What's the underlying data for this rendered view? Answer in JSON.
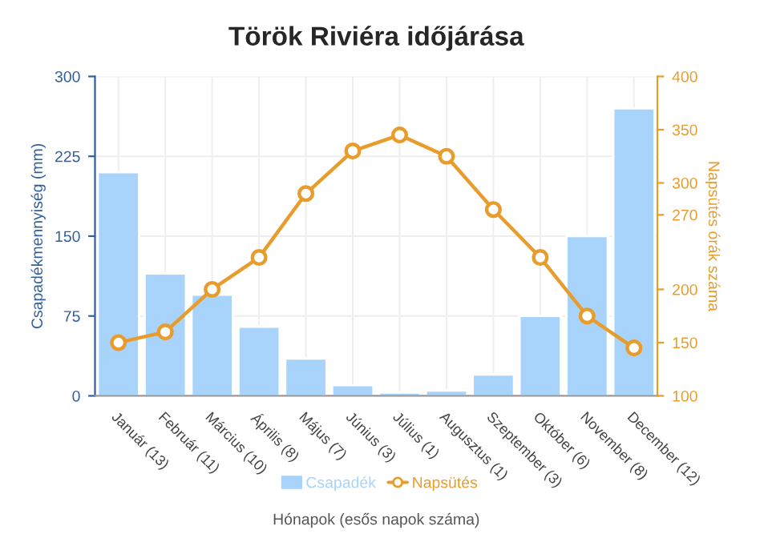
{
  "chart_data": {
    "type": "bar",
    "title": "Török Riviéra időjárása",
    "xlabel": "Hónapok (esős napok száma)",
    "ylabel": "Csapadékmennyiség (mm)",
    "y2label": "Napsütés órák száma",
    "categories": [
      "Január (13)",
      "Február (11)",
      "Március (10)",
      "Április (8)",
      "Május (7)",
      "Június (3)",
      "Július (1)",
      "Augusztus (1)",
      "Szeptember (3)",
      "Október (6)",
      "November (8)",
      "December (12)"
    ],
    "series": [
      {
        "name": "Csapadék",
        "color": "#a8d3fa",
        "values": [
          210,
          115,
          95,
          65,
          35,
          10,
          3,
          5,
          20,
          75,
          150,
          270
        ]
      },
      {
        "name": "Napsütés",
        "type": "line",
        "axis": "y2",
        "color": "#e89c2c",
        "marker": "circle",
        "values": [
          150,
          160,
          200,
          230,
          290,
          330,
          345,
          325,
          275,
          230,
          175,
          145
        ]
      }
    ],
    "ylim": [
      0,
      300
    ],
    "yticks": [
      0,
      75,
      150,
      225,
      300
    ],
    "y2lim": [
      100,
      400
    ],
    "y2ticks": [
      100,
      150,
      200,
      270,
      300,
      350,
      400
    ],
    "grid": true,
    "legend": "bottom"
  }
}
